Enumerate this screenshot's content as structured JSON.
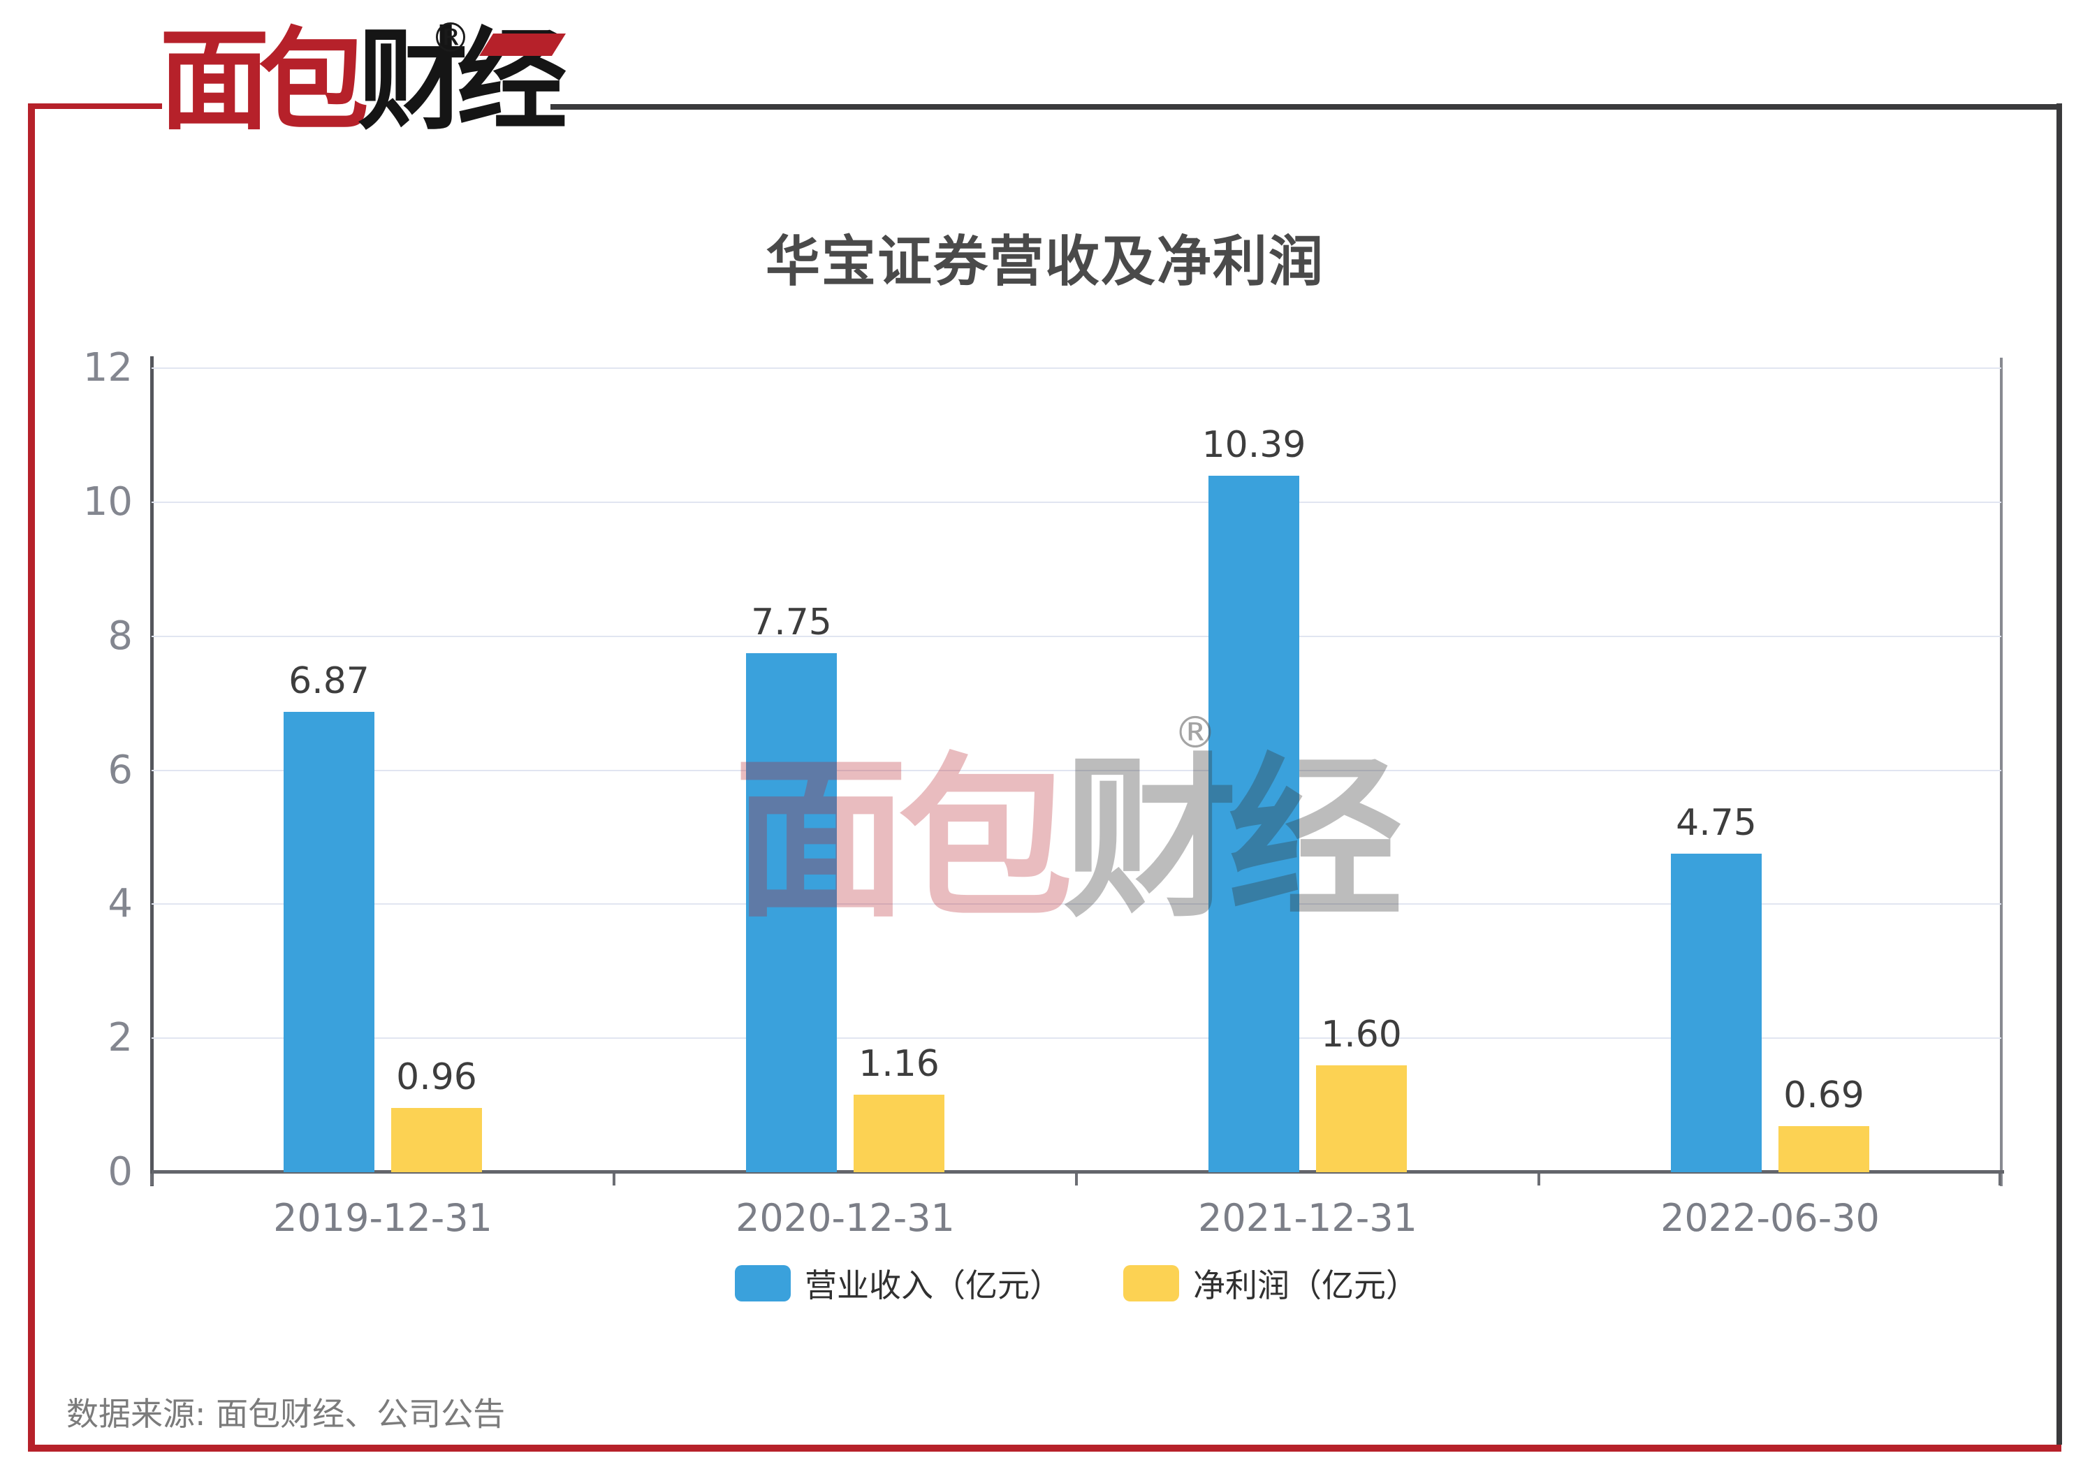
{
  "brand": {
    "name_red": "面包",
    "name_black": "财经",
    "registered_mark": "®"
  },
  "chart_data": {
    "type": "bar",
    "title": "华宝证券营收及净利润",
    "categories": [
      "2019-12-31",
      "2020-12-31",
      "2021-12-31",
      "2022-06-30"
    ],
    "series": [
      {
        "name": "营业收入（亿元）",
        "key": "revenue",
        "color": "#3AA1DC",
        "values": [
          6.87,
          7.75,
          10.39,
          4.75
        ],
        "labels": [
          "6.87",
          "7.75",
          "10.39",
          "4.75"
        ]
      },
      {
        "name": "净利润（亿元）",
        "key": "net-profit",
        "color": "#FCD253",
        "values": [
          0.96,
          1.16,
          1.6,
          0.69
        ],
        "labels": [
          "0.96",
          "1.16",
          "1.60",
          "0.69"
        ]
      }
    ],
    "ylim": [
      0,
      12
    ],
    "yticks": [
      0,
      2,
      4,
      6,
      8,
      10,
      12
    ],
    "grid": true,
    "legend_position": "bottom",
    "value_labels": true
  },
  "watermark": {
    "text_red": "面包",
    "text_gray": "财经",
    "registered_mark": "®"
  },
  "source_note": "数据来源: 面包财经、公司公告",
  "colors": {
    "accent_red": "#B6212A",
    "frame_dark": "#3A3A3C",
    "bar_blue": "#3AA1DC",
    "bar_yellow": "#FCD253",
    "gridline": "#e1e5f1"
  }
}
